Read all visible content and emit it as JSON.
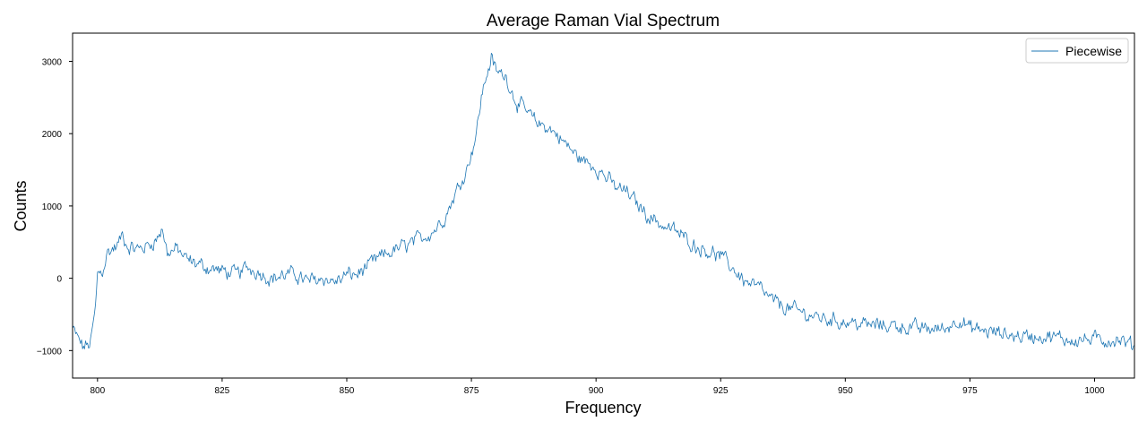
{
  "chart_data": {
    "type": "line",
    "title": "Average Raman Vial Spectrum",
    "xlabel": "Frequency",
    "ylabel": "Counts",
    "xlim": [
      795,
      1008
    ],
    "ylim": [
      -1380,
      3390
    ],
    "xticks": [
      800,
      825,
      850,
      875,
      900,
      925,
      950,
      975,
      1000
    ],
    "yticks": [
      -1000,
      0,
      1000,
      2000,
      3000
    ],
    "ytick_labels": [
      "−1000",
      "0",
      "1000",
      "2000",
      "3000"
    ],
    "grid": false,
    "legend_position": "top-right",
    "series": [
      {
        "name": "Piecewise",
        "color": "#1f77b4",
        "anchors": [
          [
            795,
            -700
          ],
          [
            797,
            -950
          ],
          [
            798.5,
            -920
          ],
          [
            799.5,
            -500
          ],
          [
            800,
            50
          ],
          [
            801,
            100
          ],
          [
            802,
            350
          ],
          [
            804,
            450
          ],
          [
            805,
            600
          ],
          [
            806,
            450
          ],
          [
            808,
            400
          ],
          [
            810,
            450
          ],
          [
            812,
            550
          ],
          [
            813,
            700
          ],
          [
            814,
            350
          ],
          [
            816,
            400
          ],
          [
            818,
            250
          ],
          [
            820,
            200
          ],
          [
            822,
            150
          ],
          [
            825,
            100
          ],
          [
            828,
            50
          ],
          [
            830,
            150
          ],
          [
            832,
            100
          ],
          [
            835,
            0
          ],
          [
            838,
            50
          ],
          [
            840,
            50
          ],
          [
            842,
            -50
          ],
          [
            845,
            0
          ],
          [
            848,
            -50
          ],
          [
            850,
            50
          ],
          [
            852,
            50
          ],
          [
            855,
            200
          ],
          [
            857,
            300
          ],
          [
            860,
            400
          ],
          [
            862,
            450
          ],
          [
            865,
            550
          ],
          [
            868,
            700
          ],
          [
            870,
            900
          ],
          [
            872,
            1200
          ],
          [
            874,
            1500
          ],
          [
            876,
            2000
          ],
          [
            877,
            2500
          ],
          [
            878,
            2800
          ],
          [
            879,
            3050
          ],
          [
            880,
            2850
          ],
          [
            882,
            2800
          ],
          [
            883,
            2600
          ],
          [
            884,
            2450
          ],
          [
            886,
            2300
          ],
          [
            888,
            2150
          ],
          [
            890,
            2100
          ],
          [
            892,
            2000
          ],
          [
            894,
            1850
          ],
          [
            896,
            1700
          ],
          [
            898,
            1600
          ],
          [
            900,
            1550
          ],
          [
            902,
            1400
          ],
          [
            904,
            1250
          ],
          [
            906,
            1200
          ],
          [
            908,
            1050
          ],
          [
            910,
            900
          ],
          [
            912,
            800
          ],
          [
            914,
            700
          ],
          [
            916,
            650
          ],
          [
            918,
            550
          ],
          [
            920,
            450
          ],
          [
            922,
            400
          ],
          [
            925,
            300
          ],
          [
            928,
            100
          ],
          [
            930,
            -50
          ],
          [
            933,
            -150
          ],
          [
            935,
            -300
          ],
          [
            938,
            -400
          ],
          [
            940,
            -450
          ],
          [
            945,
            -550
          ],
          [
            950,
            -600
          ],
          [
            955,
            -650
          ],
          [
            960,
            -650
          ],
          [
            965,
            -700
          ],
          [
            970,
            -700
          ],
          [
            973,
            -550
          ],
          [
            975,
            -700
          ],
          [
            980,
            -750
          ],
          [
            985,
            -800
          ],
          [
            990,
            -800
          ],
          [
            995,
            -850
          ],
          [
            1000,
            -850
          ],
          [
            1005,
            -850
          ],
          [
            1008,
            -950
          ]
        ]
      }
    ]
  }
}
